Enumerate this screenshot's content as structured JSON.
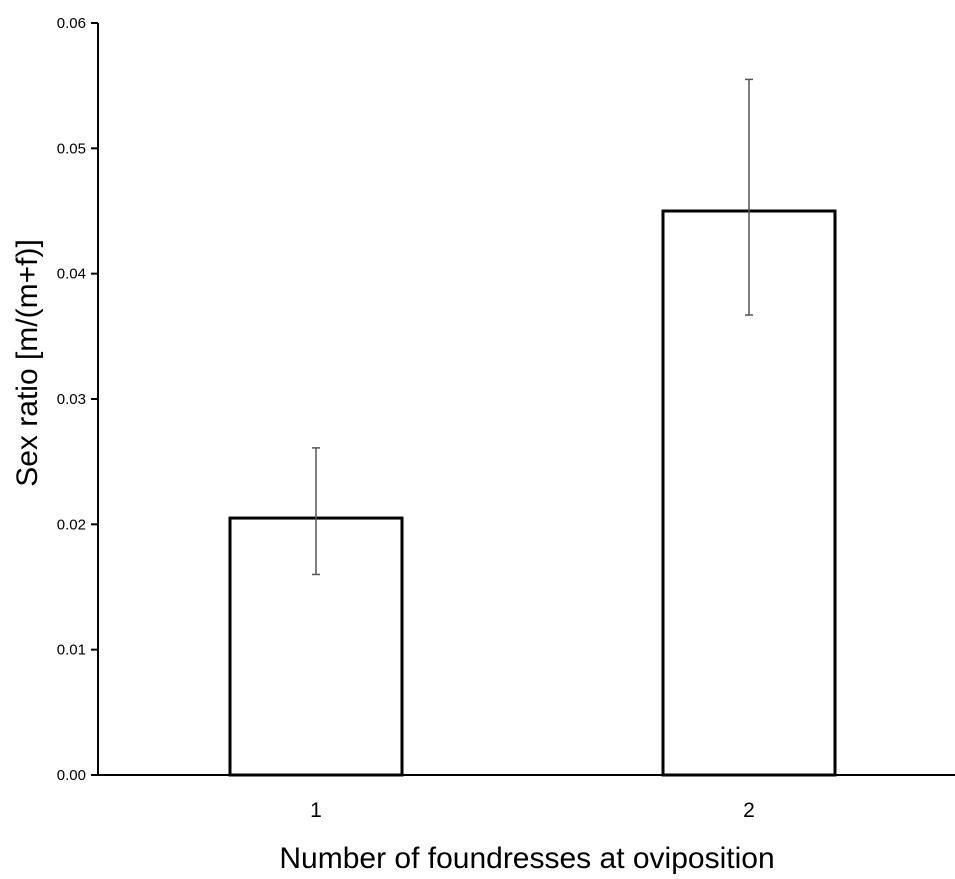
{
  "chart_data": {
    "type": "bar",
    "title": "",
    "xlabel": "Number of foundresses at oviposition",
    "ylabel": "Sex ratio [m/(m+f)]",
    "categories": [
      "1",
      "2"
    ],
    "series": [
      {
        "values": [
          0.0205,
          0.045
        ],
        "error_low": [
          0.016,
          0.0367
        ],
        "error_high": [
          0.0261,
          0.0555
        ]
      }
    ],
    "ylim": [
      0,
      0.06
    ],
    "yticks": [
      "0.00",
      "0.01",
      "0.02",
      "0.03",
      "0.04",
      "0.05",
      "0.06"
    ],
    "grid": false,
    "legend": "none",
    "colors": {
      "bar_fill": "#ffffff",
      "bar_stroke": "#000000",
      "error_bar": "#555555",
      "axis": "#000000"
    }
  }
}
